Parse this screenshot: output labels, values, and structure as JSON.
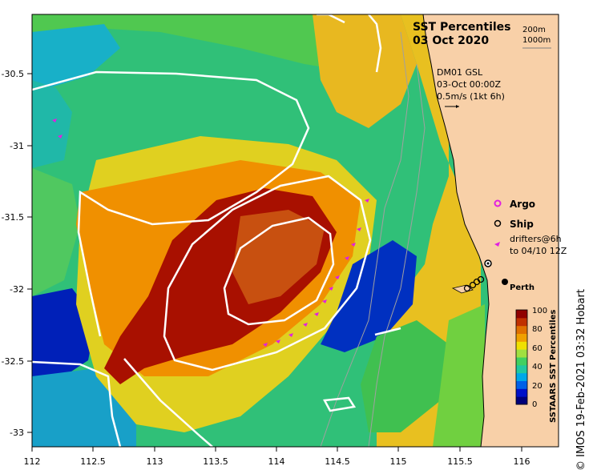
{
  "title": {
    "line1": "SST Percentiles",
    "line2": "03 Oct 2020"
  },
  "depth_legend": {
    "line1": "200m",
    "line2": "1000m"
  },
  "velocity_info": {
    "line1": "DM01 GSL",
    "line2": "03-Oct 00:00Z",
    "line3": "0.5m/s (1kt 6h)"
  },
  "legend": {
    "argo": "Argo",
    "ship": "Ship",
    "drifters_line1": "drifters@6h",
    "drifters_line2": "to 04/10 12Z",
    "argo_color": "#e020e0",
    "drifter_color": "#e020e0"
  },
  "place": {
    "perth": "Perth"
  },
  "axes": {
    "x_ticks": [
      "112",
      "112.5",
      "113",
      "113.5",
      "114",
      "114.5",
      "115",
      "115.5",
      "116"
    ],
    "y_ticks": [
      "-30.5",
      "-31",
      "-31.5",
      "-32",
      "-32.5",
      "-33"
    ]
  },
  "colorbar": {
    "title": "SSTAARS SST Percentiles",
    "ticks": [
      "100",
      "80",
      "60",
      "40",
      "20",
      "0"
    ],
    "colors": [
      "#00007a",
      "#0010c8",
      "#0060e8",
      "#00a8e8",
      "#20c8a0",
      "#40d060",
      "#a0e040",
      "#f0e000",
      "#f0a000",
      "#e07000",
      "#c03000",
      "#900000"
    ]
  },
  "credit": "© IMOS 19-Feb-2021 03:32 Hobart",
  "colors": {
    "land": "#f8d0a8",
    "contour": "#ffffff",
    "coastline": "#000000"
  }
}
